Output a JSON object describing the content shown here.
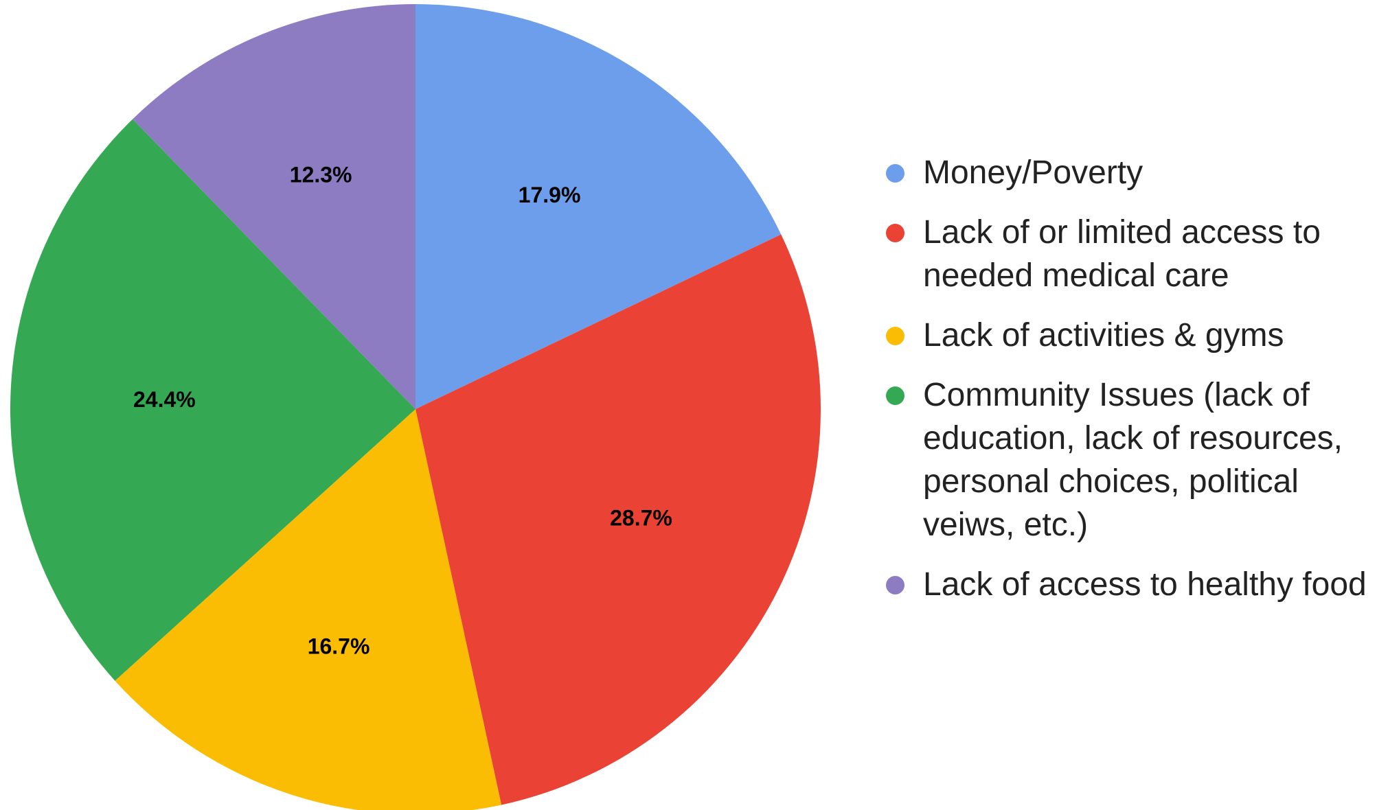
{
  "chart_data": {
    "type": "pie",
    "title": "",
    "slices": [
      {
        "label": "Money/Poverty",
        "value": 17.9,
        "value_label": "17.9%",
        "color": "#6d9eeb"
      },
      {
        "label": "Lack of or limited access to needed medical care",
        "value": 28.7,
        "value_label": "28.7%",
        "color": "#ea4335"
      },
      {
        "label": "Lack of activities & gyms",
        "value": 16.7,
        "value_label": "16.7%",
        "color": "#fbbc04"
      },
      {
        "label": "Community Issues (lack of education, lack of resources, personal choices, political veiws, etc.)",
        "value": 24.4,
        "value_label": "24.4%",
        "color": "#34a853"
      },
      {
        "label": "Lack of access to healthy food",
        "value": 12.3,
        "value_label": "12.3%",
        "color": "#8e7cc3"
      }
    ],
    "legend_position": "right"
  }
}
